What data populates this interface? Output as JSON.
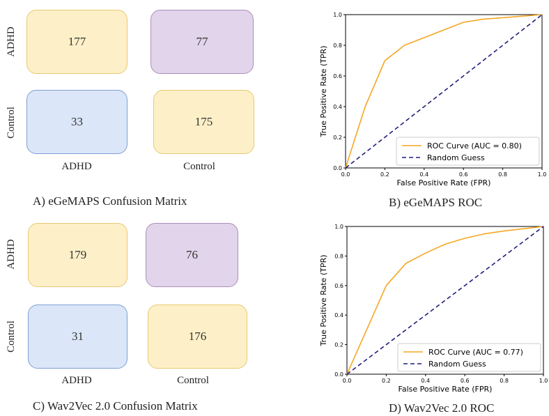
{
  "panels": {
    "A": {
      "caption": "A) eGeMAPS Confusion Matrix",
      "row_labels": [
        "ADHD",
        "Control"
      ],
      "col_labels": [
        "ADHD",
        "Control"
      ],
      "cells": [
        "177",
        "77",
        "33",
        "175"
      ]
    },
    "B": {
      "caption": "B)  eGeMAPS ROC"
    },
    "C": {
      "caption": "C) Wav2Vec 2.0 Confusion Matrix",
      "row_labels": [
        "ADHD",
        "Control"
      ],
      "col_labels": [
        "ADHD",
        "Control"
      ],
      "cells": [
        "179",
        "76",
        "31",
        "176"
      ]
    },
    "D": {
      "caption": "D) Wav2Vec 2.0 ROC"
    }
  },
  "colors": {
    "roc": "#f5a623",
    "random": "#1f1f7a",
    "cell_true": "#fdf0c8",
    "cell_fn": "#e2d4ea",
    "cell_fp": "#dbe6f8"
  },
  "chart_data": [
    {
      "type": "line",
      "xlabel": "False Positive Rate (FPR)",
      "ylabel": "True Positive Rate (TPR)",
      "xlim": [
        0,
        1
      ],
      "ylim": [
        0,
        1
      ],
      "xticks": [
        "0.0",
        "0.2",
        "0.4",
        "0.6",
        "0.8",
        "1.0"
      ],
      "yticks": [
        "0.0",
        "0.2",
        "0.4",
        "0.6",
        "0.8",
        "1.0"
      ],
      "legend_position": "bottom-right",
      "series": [
        {
          "name": "ROC Curve (AUC = 0.80)",
          "style": "solid",
          "x": [
            0,
            0.1,
            0.2,
            0.3,
            0.6,
            0.7,
            1.0
          ],
          "y": [
            0,
            0.4,
            0.7,
            0.8,
            0.95,
            0.97,
            1.0
          ]
        },
        {
          "name": "Random Guess",
          "style": "dashed",
          "x": [
            0,
            1
          ],
          "y": [
            0,
            1
          ]
        }
      ]
    },
    {
      "type": "line",
      "xlabel": "False Positive Rate (FPR)",
      "ylabel": "True Positive Rate (TPR)",
      "xlim": [
        0,
        1
      ],
      "ylim": [
        0,
        1
      ],
      "xticks": [
        "0.0",
        "0.2",
        "0.4",
        "0.6",
        "0.8",
        "1.0"
      ],
      "yticks": [
        "0.0",
        "0.2",
        "0.4",
        "0.6",
        "0.8",
        "1.0"
      ],
      "legend_position": "bottom-right",
      "series": [
        {
          "name": "ROC Curve (AUC = 0.77)",
          "style": "solid",
          "x": [
            0,
            0.1,
            0.2,
            0.3,
            0.4,
            0.5,
            0.6,
            0.7,
            0.8,
            0.9,
            1.0
          ],
          "y": [
            0,
            0.3,
            0.6,
            0.75,
            0.82,
            0.88,
            0.92,
            0.95,
            0.97,
            0.985,
            1.0
          ]
        },
        {
          "name": "Random Guess",
          "style": "dashed",
          "x": [
            0,
            1
          ],
          "y": [
            0,
            1
          ]
        }
      ]
    }
  ]
}
